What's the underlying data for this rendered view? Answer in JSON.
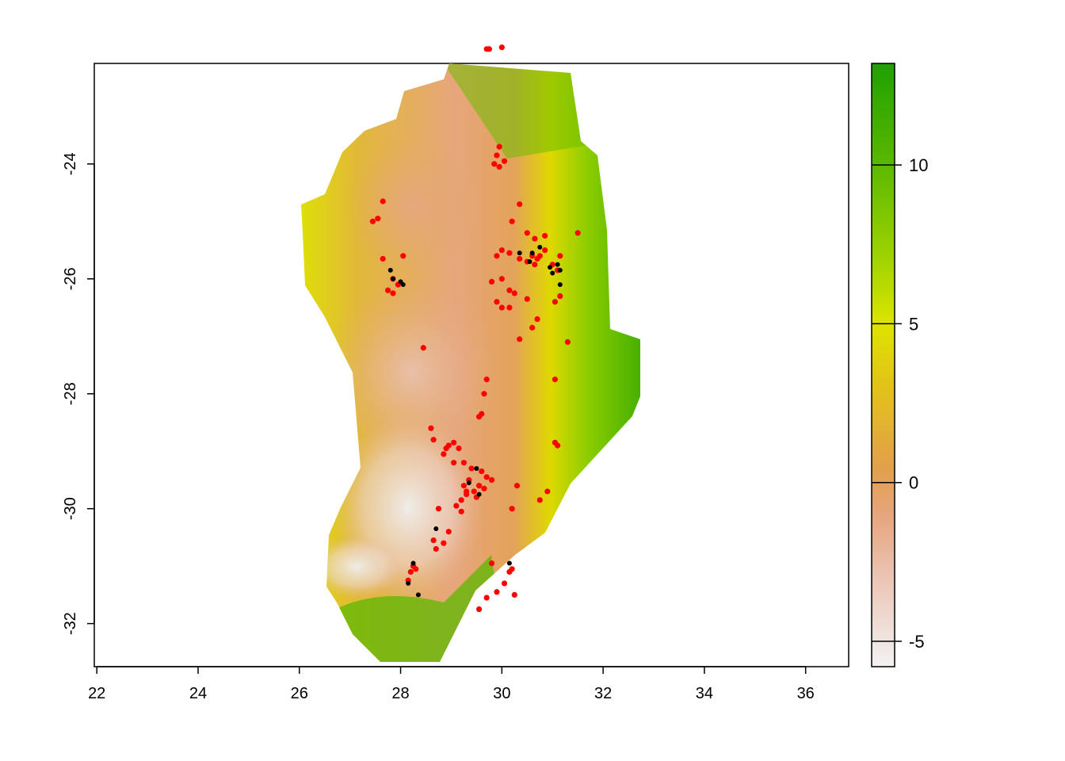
{
  "map": {
    "type": "raster-map",
    "xlim": [
      21.95,
      36.85
    ],
    "ylim": [
      -32.75,
      -22.25
    ],
    "x_ticks": [
      22,
      24,
      26,
      28,
      30,
      32,
      34,
      36
    ],
    "y_ticks": [
      -24,
      -26,
      -28,
      -30,
      -32
    ],
    "x_tick_labels": [
      "22",
      "24",
      "26",
      "28",
      "30",
      "32",
      "34",
      "36"
    ],
    "y_tick_labels": [
      "-24",
      "-26",
      "-28",
      "-30",
      "-32"
    ],
    "grid": false
  },
  "legend": {
    "range": [
      -5.8,
      13.2
    ],
    "ticks": [
      -5,
      0,
      5,
      10
    ],
    "tick_labels": [
      "-5",
      "0",
      "5",
      "10"
    ],
    "color_stops": [
      {
        "value": -5.8,
        "color": "#f2f2f2"
      },
      {
        "value": -3.0,
        "color": "#ebc4b4"
      },
      {
        "value": -1.0,
        "color": "#e6a57c"
      },
      {
        "value": 0.5,
        "color": "#e2a04a"
      },
      {
        "value": 3.0,
        "color": "#e3c21a"
      },
      {
        "value": 5.0,
        "color": "#dde400"
      },
      {
        "value": 7.0,
        "color": "#a0d400"
      },
      {
        "value": 10.0,
        "color": "#5bb800"
      },
      {
        "value": 13.2,
        "color": "#1fa000"
      }
    ]
  },
  "points": {
    "red": [
      [
        29.7,
        -22.0
      ],
      [
        29.75,
        -22.0
      ],
      [
        30.0,
        -21.97
      ],
      [
        29.95,
        -23.7
      ],
      [
        29.9,
        -23.85
      ],
      [
        30.05,
        -23.95
      ],
      [
        29.85,
        -24.0
      ],
      [
        29.95,
        -24.05
      ],
      [
        27.65,
        -24.65
      ],
      [
        27.55,
        -24.95
      ],
      [
        27.45,
        -25.0
      ],
      [
        30.35,
        -24.7
      ],
      [
        30.2,
        -25.0
      ],
      [
        30.5,
        -25.2
      ],
      [
        30.85,
        -25.25
      ],
      [
        30.65,
        -25.3
      ],
      [
        30.0,
        -25.5
      ],
      [
        29.9,
        -25.6
      ],
      [
        30.15,
        -25.55
      ],
      [
        30.6,
        -25.6
      ],
      [
        30.5,
        -25.7
      ],
      [
        30.35,
        -25.65
      ],
      [
        30.7,
        -25.65
      ],
      [
        30.65,
        -25.75
      ],
      [
        30.0,
        -26.0
      ],
      [
        29.8,
        -26.05
      ],
      [
        30.15,
        -26.2
      ],
      [
        30.25,
        -26.25
      ],
      [
        29.9,
        -26.4
      ],
      [
        30.5,
        -26.35
      ],
      [
        30.0,
        -26.5
      ],
      [
        30.15,
        -26.5
      ],
      [
        30.7,
        -26.7
      ],
      [
        30.6,
        -26.85
      ],
      [
        31.5,
        -25.2
      ],
      [
        30.85,
        -25.5
      ],
      [
        30.75,
        -25.6
      ],
      [
        31.15,
        -25.6
      ],
      [
        31.0,
        -25.75
      ],
      [
        31.1,
        -25.85
      ],
      [
        31.15,
        -26.3
      ],
      [
        31.05,
        -26.4
      ],
      [
        27.65,
        -25.65
      ],
      [
        28.05,
        -25.6
      ],
      [
        27.85,
        -26.0
      ],
      [
        27.95,
        -26.1
      ],
      [
        27.75,
        -26.2
      ],
      [
        27.85,
        -26.25
      ],
      [
        28.45,
        -27.2
      ],
      [
        30.35,
        -27.05
      ],
      [
        31.3,
        -27.1
      ],
      [
        29.7,
        -27.75
      ],
      [
        29.65,
        -28.0
      ],
      [
        31.05,
        -27.75
      ],
      [
        29.6,
        -28.35
      ],
      [
        29.55,
        -28.4
      ],
      [
        29.3,
        -29.7
      ],
      [
        28.6,
        -28.6
      ],
      [
        28.65,
        -28.8
      ],
      [
        29.05,
        -28.85
      ],
      [
        29.15,
        -28.95
      ],
      [
        28.95,
        -28.9
      ],
      [
        28.9,
        -28.95
      ],
      [
        28.85,
        -29.05
      ],
      [
        29.05,
        -29.2
      ],
      [
        29.25,
        -29.2
      ],
      [
        29.4,
        -29.3
      ],
      [
        29.6,
        -29.35
      ],
      [
        29.7,
        -29.45
      ],
      [
        29.8,
        -29.5
      ],
      [
        29.35,
        -29.5
      ],
      [
        29.25,
        -29.6
      ],
      [
        29.55,
        -29.6
      ],
      [
        29.65,
        -29.65
      ],
      [
        29.45,
        -29.7
      ],
      [
        29.3,
        -29.75
      ],
      [
        29.5,
        -29.8
      ],
      [
        29.2,
        -29.85
      ],
      [
        29.1,
        -29.95
      ],
      [
        28.75,
        -30.0
      ],
      [
        29.2,
        -30.05
      ],
      [
        28.95,
        -30.4
      ],
      [
        28.85,
        -30.6
      ],
      [
        28.65,
        -30.55
      ],
      [
        28.7,
        -30.7
      ],
      [
        30.3,
        -29.6
      ],
      [
        30.2,
        -30.0
      ],
      [
        30.9,
        -29.7
      ],
      [
        30.75,
        -29.85
      ],
      [
        31.05,
        -28.85
      ],
      [
        31.1,
        -28.9
      ],
      [
        28.25,
        -31.0
      ],
      [
        28.2,
        -31.1
      ],
      [
        28.15,
        -31.25
      ],
      [
        28.3,
        -31.05
      ],
      [
        29.8,
        -30.95
      ],
      [
        30.2,
        -31.05
      ],
      [
        30.15,
        -31.1
      ],
      [
        29.9,
        -31.45
      ],
      [
        29.7,
        -31.55
      ],
      [
        29.55,
        -31.75
      ],
      [
        30.05,
        -31.3
      ],
      [
        30.25,
        -31.5
      ]
    ],
    "black": [
      [
        30.35,
        -25.55
      ],
      [
        30.6,
        -25.55
      ],
      [
        30.75,
        -25.45
      ],
      [
        30.55,
        -25.7
      ],
      [
        30.95,
        -25.8
      ],
      [
        31.1,
        -25.75
      ],
      [
        31.15,
        -25.85
      ],
      [
        31.0,
        -25.9
      ],
      [
        31.15,
        -26.1
      ],
      [
        27.8,
        -25.85
      ],
      [
        27.85,
        -26.0
      ],
      [
        28.0,
        -26.05
      ],
      [
        28.05,
        -26.1
      ],
      [
        29.5,
        -29.3
      ],
      [
        29.35,
        -29.55
      ],
      [
        29.55,
        -29.75
      ],
      [
        28.7,
        -30.35
      ],
      [
        28.25,
        -30.95
      ],
      [
        28.15,
        -31.3
      ],
      [
        28.35,
        -31.5
      ],
      [
        30.15,
        -30.95
      ]
    ]
  }
}
